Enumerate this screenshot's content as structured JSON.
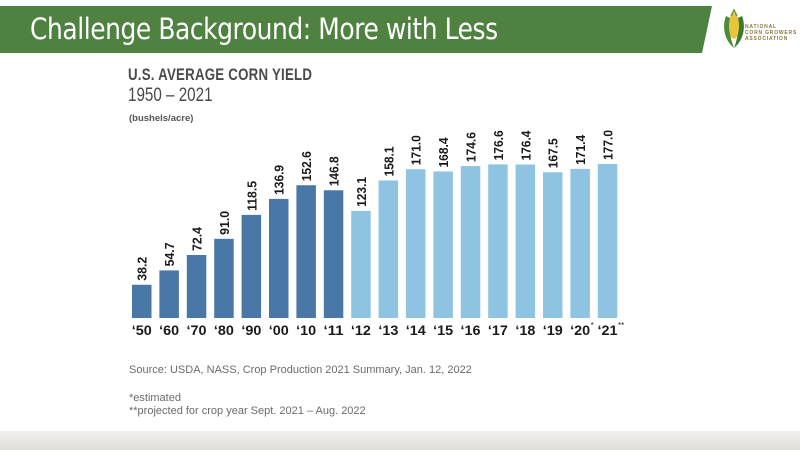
{
  "slide": {
    "title": "Challenge Background: More with Less",
    "logo": {
      "lines": [
        "NATIONAL",
        "CORN GROWERS",
        "ASSOCIATION"
      ],
      "icon": "corn-icon"
    },
    "colors": {
      "header_green": "#4f8241",
      "bar_historic": "#4a78a6",
      "bar_recent": "#8ec4e2",
      "text_dark": "#4a4a4a"
    }
  },
  "chart_data": {
    "type": "bar",
    "title": "U.S. AVERAGE CORN YIELD",
    "subtitle": "1950 – 2021",
    "ylabel": "(bushels/acre)",
    "xlabel": "",
    "ylim": [
      0,
      177
    ],
    "grid": false,
    "categories": [
      "‘50",
      "‘60",
      "‘70",
      "‘80",
      "‘90",
      "‘00",
      "‘10",
      "‘11",
      "‘12",
      "‘13",
      "‘14",
      "‘15",
      "‘16",
      "‘17",
      "‘18",
      "‘19",
      "‘20",
      "‘21"
    ],
    "category_suffixes": [
      "",
      "",
      "",
      "",
      "",
      "",
      "",
      "",
      "",
      "",
      "",
      "",
      "",
      "",
      "",
      "",
      "*",
      "**"
    ],
    "values": [
      38.2,
      54.7,
      72.4,
      91.0,
      118.5,
      136.9,
      152.6,
      146.8,
      123.1,
      158.1,
      171.0,
      168.4,
      174.6,
      176.6,
      176.4,
      167.5,
      171.4,
      177.0
    ],
    "value_labels": [
      "38.2",
      "54.7",
      "72.4",
      "91.0",
      "118.5",
      "136.9",
      "152.6",
      "146.8",
      "123.1",
      "158.1",
      "171.0",
      "168.4",
      "174.6",
      "176.6",
      "176.4",
      "167.5",
      "171.4",
      "177.0"
    ],
    "series_group": [
      "historic",
      "historic",
      "historic",
      "historic",
      "historic",
      "historic",
      "historic",
      "historic",
      "recent",
      "recent",
      "recent",
      "recent",
      "recent",
      "recent",
      "recent",
      "recent",
      "recent",
      "recent"
    ]
  },
  "footnotes": {
    "source": "Source: USDA, NASS, Crop Production 2021 Summary, Jan. 12, 2022",
    "estimated": "*estimated",
    "projected": "**projected for crop year Sept. 2021 – Aug. 2022"
  }
}
